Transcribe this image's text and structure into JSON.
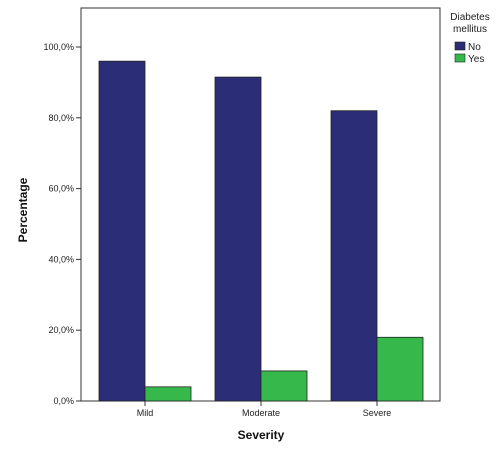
{
  "chart_data": {
    "type": "bar",
    "xlabel": "Severity",
    "ylabel": "Percentage",
    "categories": [
      "Mild",
      "Moderate",
      "Severe"
    ],
    "ylim": [
      0,
      100
    ],
    "yticks": [
      0,
      20,
      40,
      60,
      80,
      100
    ],
    "ytick_labels": [
      "0,0%",
      "20,0%",
      "40,0%",
      "60,0%",
      "80,0%",
      "100,0%"
    ],
    "grid": false,
    "legend": {
      "title_lines": [
        "Diabetes",
        "mellitus"
      ],
      "placement": "top-right outside"
    },
    "series": [
      {
        "name": "No",
        "color": "#2b2d76",
        "values": [
          96.0,
          91.5,
          82.0
        ]
      },
      {
        "name": "Yes",
        "color": "#36b94a",
        "values": [
          4.0,
          8.5,
          18.0
        ]
      }
    ]
  }
}
